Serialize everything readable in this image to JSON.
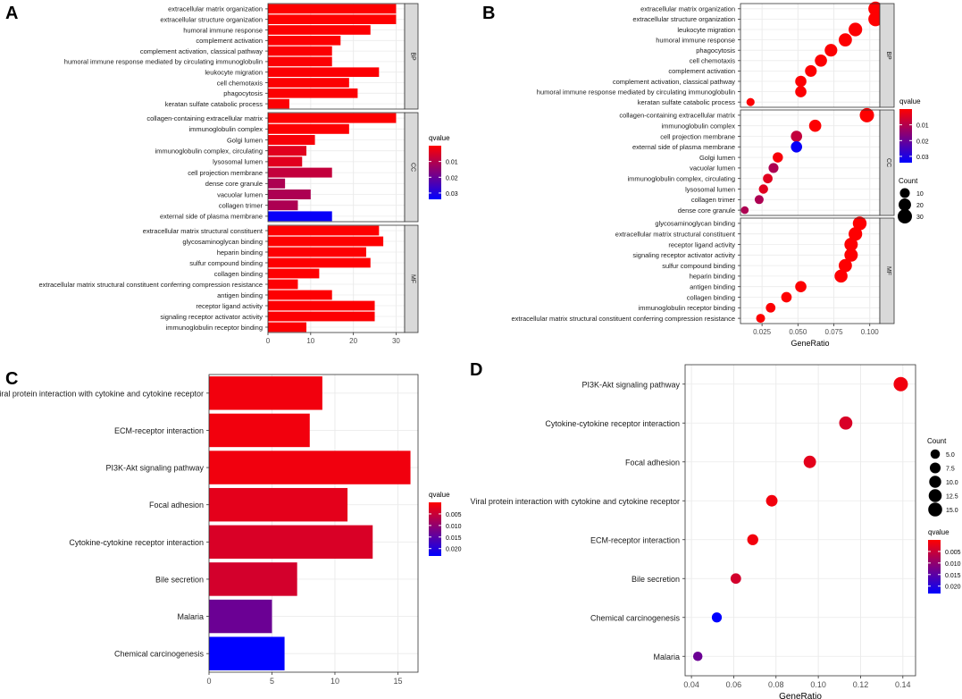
{
  "chart_data": [
    {
      "panel": "A",
      "type": "bar",
      "orientation": "horizontal",
      "title": "",
      "xlabel": "",
      "ylabel": "",
      "xlim": [
        0,
        32
      ],
      "xticks": [
        0,
        10,
        20,
        30
      ],
      "facets": [
        {
          "name": "BP",
          "items": [
            {
              "term": "extracellular matrix organization",
              "value": 30,
              "q": 0.0001
            },
            {
              "term": "extracellular structure organization",
              "value": 30,
              "q": 0.0001
            },
            {
              "term": "humoral immune response",
              "value": 24,
              "q": 0.0003
            },
            {
              "term": "complement activation",
              "value": 17,
              "q": 0.0003
            },
            {
              "term": "complement activation, classical pathway",
              "value": 15,
              "q": 0.0004
            },
            {
              "term": "humoral immune response mediated by circulating immunoglobulin",
              "value": 15,
              "q": 0.0004
            },
            {
              "term": "leukocyte migration",
              "value": 26,
              "q": 0.0004
            },
            {
              "term": "cell chemotaxis",
              "value": 19,
              "q": 0.0004
            },
            {
              "term": "phagocytosis",
              "value": 21,
              "q": 0.0004
            },
            {
              "term": "keratan sulfate catabolic process",
              "value": 5,
              "q": 0.0004
            }
          ]
        },
        {
          "name": "CC",
          "items": [
            {
              "term": "collagen-containing extracellular matrix",
              "value": 30,
              "q": 0.0001
            },
            {
              "term": "immunoglobulin complex",
              "value": 19,
              "q": 0.0003
            },
            {
              "term": "Golgi lumen",
              "value": 11,
              "q": 0.001
            },
            {
              "term": "immunoglobulin complex, circulating",
              "value": 9,
              "q": 0.004
            },
            {
              "term": "lysosomal lumen",
              "value": 8,
              "q": 0.004
            },
            {
              "term": "cell projection membrane",
              "value": 15,
              "q": 0.008
            },
            {
              "term": "dense core granule",
              "value": 4,
              "q": 0.011
            },
            {
              "term": "vacuolar lumen",
              "value": 10,
              "q": 0.011
            },
            {
              "term": "collagen trimer",
              "value": 7,
              "q": 0.011
            },
            {
              "term": "external side of plasma membrane",
              "value": 15,
              "q": 0.033
            }
          ]
        },
        {
          "name": "MF",
          "items": [
            {
              "term": "extracellular matrix structural constituent",
              "value": 26,
              "q": 0.0001
            },
            {
              "term": "glycosaminoglycan binding",
              "value": 27,
              "q": 0.0001
            },
            {
              "term": "heparin binding",
              "value": 23,
              "q": 0.0002
            },
            {
              "term": "sulfur compound binding",
              "value": 24,
              "q": 0.0002
            },
            {
              "term": "collagen binding",
              "value": 12,
              "q": 0.0002
            },
            {
              "term": "extracellular matrix structural constituent conferring compression resistance",
              "value": 7,
              "q": 0.0003
            },
            {
              "term": "antigen binding",
              "value": 15,
              "q": 0.0003
            },
            {
              "term": "receptor ligand activity",
              "value": 25,
              "q": 0.0003
            },
            {
              "term": "signaling receptor activator activity",
              "value": 25,
              "q": 0.0003
            },
            {
              "term": "immunoglobulin receptor binding",
              "value": 9,
              "q": 0.0004
            }
          ]
        }
      ],
      "legend": {
        "title": "qvalue",
        "ticks": [
          "0.01",
          "0.02",
          "0.03"
        ],
        "qmax": 0.034
      }
    },
    {
      "panel": "B",
      "type": "scatter",
      "title": "",
      "xlabel": "GeneRatio",
      "ylabel": "",
      "xlim": [
        0.01,
        0.107
      ],
      "xticks": [
        "0.025",
        "0.050",
        "0.075",
        "0.100"
      ],
      "facets": [
        {
          "name": "BP",
          "items": [
            {
              "term": "extracellular matrix organization",
              "x": 0.104,
              "count": 30,
              "q": 0.0001
            },
            {
              "term": "extracellular structure organization",
              "x": 0.104,
              "count": 30,
              "q": 0.0001
            },
            {
              "term": "leukocyte migration",
              "x": 0.09,
              "count": 26,
              "q": 0.0004
            },
            {
              "term": "humoral immune response",
              "x": 0.083,
              "count": 24,
              "q": 0.0003
            },
            {
              "term": "phagocytosis",
              "x": 0.073,
              "count": 21,
              "q": 0.0004
            },
            {
              "term": "cell chemotaxis",
              "x": 0.066,
              "count": 19,
              "q": 0.0004
            },
            {
              "term": "complement activation",
              "x": 0.059,
              "count": 17,
              "q": 0.0003
            },
            {
              "term": "complement activation, classical pathway",
              "x": 0.052,
              "count": 15,
              "q": 0.0004
            },
            {
              "term": "humoral immune response mediated by circulating immunoglobulin",
              "x": 0.052,
              "count": 15,
              "q": 0.0004
            },
            {
              "term": "keratan sulfate catabolic process",
              "x": 0.017,
              "count": 5,
              "q": 0.0004
            }
          ]
        },
        {
          "name": "CC",
          "items": [
            {
              "term": "collagen-containing extracellular matrix",
              "x": 0.098,
              "count": 30,
              "q": 0.0001
            },
            {
              "term": "immunoglobulin complex",
              "x": 0.062,
              "count": 19,
              "q": 0.0003
            },
            {
              "term": "cell projection membrane",
              "x": 0.049,
              "count": 15,
              "q": 0.008
            },
            {
              "term": "external side of plasma membrane",
              "x": 0.049,
              "count": 15,
              "q": 0.033
            },
            {
              "term": "Golgi lumen",
              "x": 0.036,
              "count": 11,
              "q": 0.001
            },
            {
              "term": "vacuolar lumen",
              "x": 0.033,
              "count": 10,
              "q": 0.011
            },
            {
              "term": "immunoglobulin complex, circulating",
              "x": 0.029,
              "count": 9,
              "q": 0.004
            },
            {
              "term": "lysosomal lumen",
              "x": 0.026,
              "count": 8,
              "q": 0.004
            },
            {
              "term": "collagen trimer",
              "x": 0.023,
              "count": 7,
              "q": 0.011
            },
            {
              "term": "dense core granule",
              "x": 0.013,
              "count": 4,
              "q": 0.011
            }
          ]
        },
        {
          "name": "MF",
          "items": [
            {
              "term": "glycosaminoglycan binding",
              "x": 0.093,
              "count": 27,
              "q": 0.0001
            },
            {
              "term": "extracellular matrix structural constituent",
              "x": 0.09,
              "count": 26,
              "q": 0.0001
            },
            {
              "term": "receptor ligand activity",
              "x": 0.087,
              "count": 25,
              "q": 0.0003
            },
            {
              "term": "signaling receptor activator activity",
              "x": 0.087,
              "count": 25,
              "q": 0.0003
            },
            {
              "term": "sulfur compound binding",
              "x": 0.083,
              "count": 24,
              "q": 0.0002
            },
            {
              "term": "heparin binding",
              "x": 0.08,
              "count": 23,
              "q": 0.0002
            },
            {
              "term": "antigen binding",
              "x": 0.052,
              "count": 15,
              "q": 0.0003
            },
            {
              "term": "collagen binding",
              "x": 0.042,
              "count": 12,
              "q": 0.0002
            },
            {
              "term": "immunoglobulin receptor binding",
              "x": 0.031,
              "count": 9,
              "q": 0.0004
            },
            {
              "term": "extracellular matrix structural constituent conferring compression resistance",
              "x": 0.024,
              "count": 7,
              "q": 0.0003
            }
          ]
        }
      ],
      "legend": {
        "q_title": "qvalue",
        "q_ticks": [
          "0.01",
          "0.02",
          "0.03"
        ],
        "qmax": 0.034,
        "count_title": "Count",
        "count_values": [
          10,
          20,
          30
        ]
      }
    },
    {
      "panel": "C",
      "type": "bar",
      "orientation": "horizontal",
      "title": "",
      "xlabel": "",
      "ylabel": "",
      "xlim": [
        0,
        16.6
      ],
      "xticks": [
        0,
        5,
        10,
        15
      ],
      "categories": [
        "Viral protein interaction with cytokine and cytokine receptor",
        "ECM-receptor interaction",
        "PI3K-Akt signaling pathway",
        "Focal adhesion",
        "Cytokine-cytokine receptor interaction",
        "Bile secretion",
        "Malaria",
        "Chemical carcinogenesis"
      ],
      "values": [
        9,
        8,
        16,
        11,
        13,
        7,
        5,
        6
      ],
      "qvalues": [
        0.0012,
        0.0012,
        0.0013,
        0.0025,
        0.0035,
        0.004,
        0.0135,
        0.0232
      ],
      "legend": {
        "title": "qvalue",
        "ticks": [
          "0.005",
          "0.010",
          "0.015",
          "0.020"
        ],
        "qmax": 0.0232
      }
    },
    {
      "panel": "D",
      "type": "scatter",
      "title": "",
      "xlabel": "GeneRatio",
      "ylabel": "",
      "xlim": [
        0.037,
        0.146
      ],
      "xticks": [
        "0.04",
        "0.06",
        "0.08",
        "0.10",
        "0.12",
        "0.14"
      ],
      "categories": [
        "PI3K-Akt signaling pathway",
        "Cytokine-cytokine receptor interaction",
        "Focal adhesion",
        "Viral protein interaction with cytokine and cytokine receptor",
        "ECM-receptor interaction",
        "Bile secretion",
        "Chemical carcinogenesis",
        "Malaria"
      ],
      "x": [
        0.139,
        0.113,
        0.096,
        0.078,
        0.069,
        0.061,
        0.052,
        0.043
      ],
      "counts": [
        16,
        13,
        11,
        9,
        8,
        7,
        6,
        5
      ],
      "qvalues": [
        0.0013,
        0.0035,
        0.0025,
        0.0012,
        0.0012,
        0.004,
        0.0232,
        0.0135
      ],
      "legend": {
        "count_title": "Count",
        "count_values": [
          "5.0",
          "7.5",
          "10.0",
          "12.5",
          "15.0"
        ],
        "q_title": "qvalue",
        "q_ticks": [
          "0.005",
          "0.010",
          "0.015",
          "0.020"
        ],
        "qmax": 0.0232
      }
    }
  ],
  "colors": {
    "low_q": "#ff0000",
    "high_q": "#0000ff"
  }
}
